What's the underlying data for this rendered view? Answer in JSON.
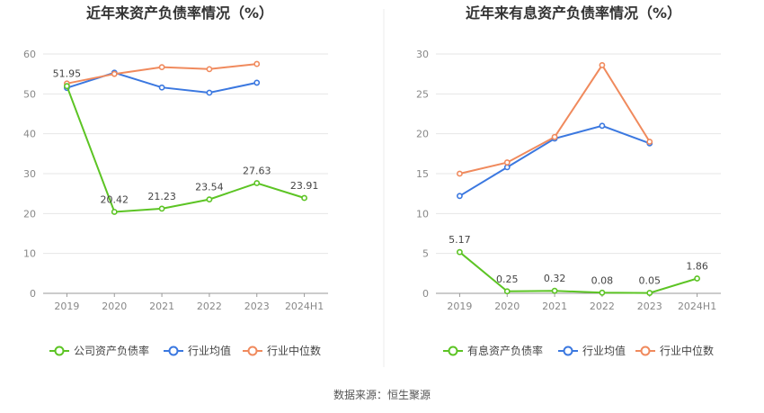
{
  "chart_data": [
    {
      "type": "line",
      "title": "近年来资产负债率情况（%）",
      "categories": [
        "2019",
        "2020",
        "2021",
        "2022",
        "2023",
        "2024H1"
      ],
      "ylim": [
        0,
        60
      ],
      "yticks": [
        0,
        10,
        20,
        30,
        40,
        50,
        60
      ],
      "grid": true,
      "legend_position": "bottom",
      "series": [
        {
          "name": "公司资产负债率",
          "color": "#5cc424",
          "values": [
            51.95,
            20.42,
            21.23,
            23.54,
            27.63,
            23.91
          ],
          "labels": [
            "51.95",
            "20.42",
            "21.23",
            "23.54",
            "27.63",
            "23.91"
          ]
        },
        {
          "name": "行业均值",
          "color": "#3b78e0",
          "values": [
            51.5,
            55.3,
            51.6,
            50.3,
            52.8,
            null
          ]
        },
        {
          "name": "行业中位数",
          "color": "#f08a5d",
          "values": [
            52.6,
            55.0,
            56.7,
            56.2,
            57.5,
            null
          ]
        }
      ]
    },
    {
      "type": "line",
      "title": "近年来有息资产负债率情况（%）",
      "categories": [
        "2019",
        "2020",
        "2021",
        "2022",
        "2023",
        "2024H1"
      ],
      "ylim": [
        0,
        30
      ],
      "yticks": [
        0,
        5,
        10,
        15,
        20,
        25,
        30
      ],
      "grid": true,
      "legend_position": "bottom",
      "series": [
        {
          "name": "有息资产负债率",
          "color": "#5cc424",
          "values": [
            5.17,
            0.25,
            0.32,
            0.08,
            0.05,
            1.86
          ],
          "labels": [
            "5.17",
            "0.25",
            "0.32",
            "0.08",
            "0.05",
            "1.86"
          ]
        },
        {
          "name": "行业均值",
          "color": "#3b78e0",
          "values": [
            12.2,
            15.8,
            19.4,
            21.0,
            18.8,
            null
          ]
        },
        {
          "name": "行业中位数",
          "color": "#f08a5d",
          "values": [
            15.0,
            16.4,
            19.6,
            28.6,
            19.0,
            null
          ]
        }
      ]
    }
  ],
  "footer": {
    "source": "数据来源：恒生聚源"
  }
}
